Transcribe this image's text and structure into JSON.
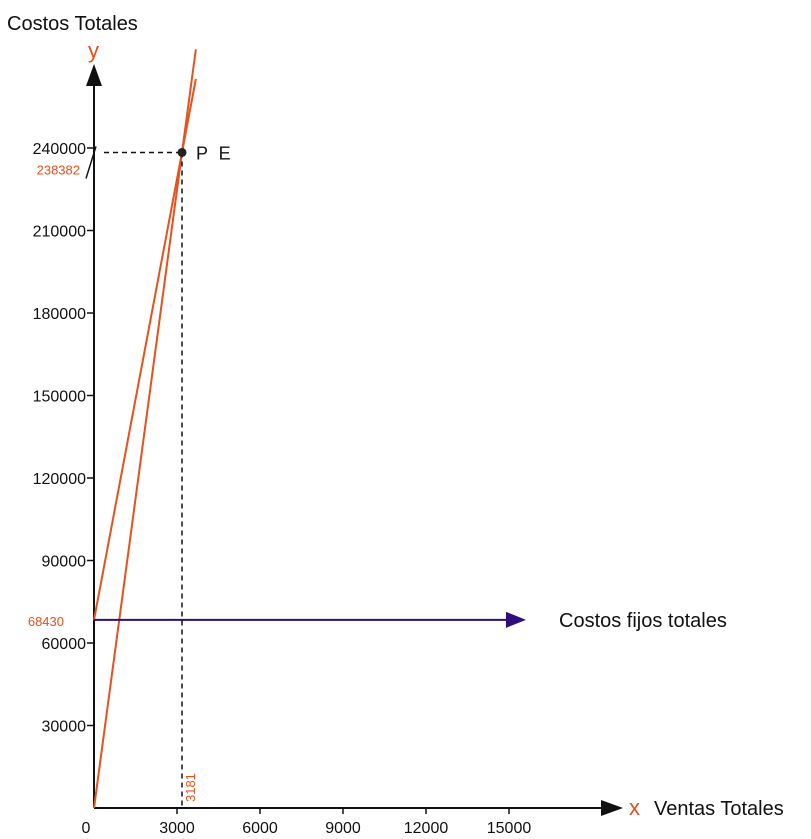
{
  "chart_data": {
    "type": "line",
    "y_axis": {
      "letter": "y",
      "title": "Costos Totales",
      "ticks": [
        30000,
        60000,
        90000,
        120000,
        150000,
        180000,
        210000,
        240000
      ],
      "range": [
        0,
        240000
      ]
    },
    "x_axis": {
      "letter": "x",
      "title": "Ventas Totales",
      "origin_label": "0",
      "ticks": [
        3000,
        6000,
        9000,
        12000,
        15000
      ],
      "range": [
        0,
        15000
      ]
    },
    "series": [
      {
        "points": [
          [
            0,
            68430
          ],
          [
            3181,
            238382
          ]
        ]
      },
      {
        "points": [
          [
            0,
            0
          ],
          [
            3181,
            238382
          ]
        ]
      }
    ],
    "fixed_costs": {
      "value": 68430,
      "label": "68430",
      "annotation": "Costos fijos totales"
    },
    "break_even": {
      "x": 3181,
      "y": 238382,
      "label": "P E",
      "x_label": "3181",
      "y_label": "238382"
    }
  },
  "colors": {
    "axis": "#111111",
    "cost_lines": "#e8501c",
    "fixed_cost_arrow": "#2f0d7a",
    "accent_text": "#e8501c"
  }
}
